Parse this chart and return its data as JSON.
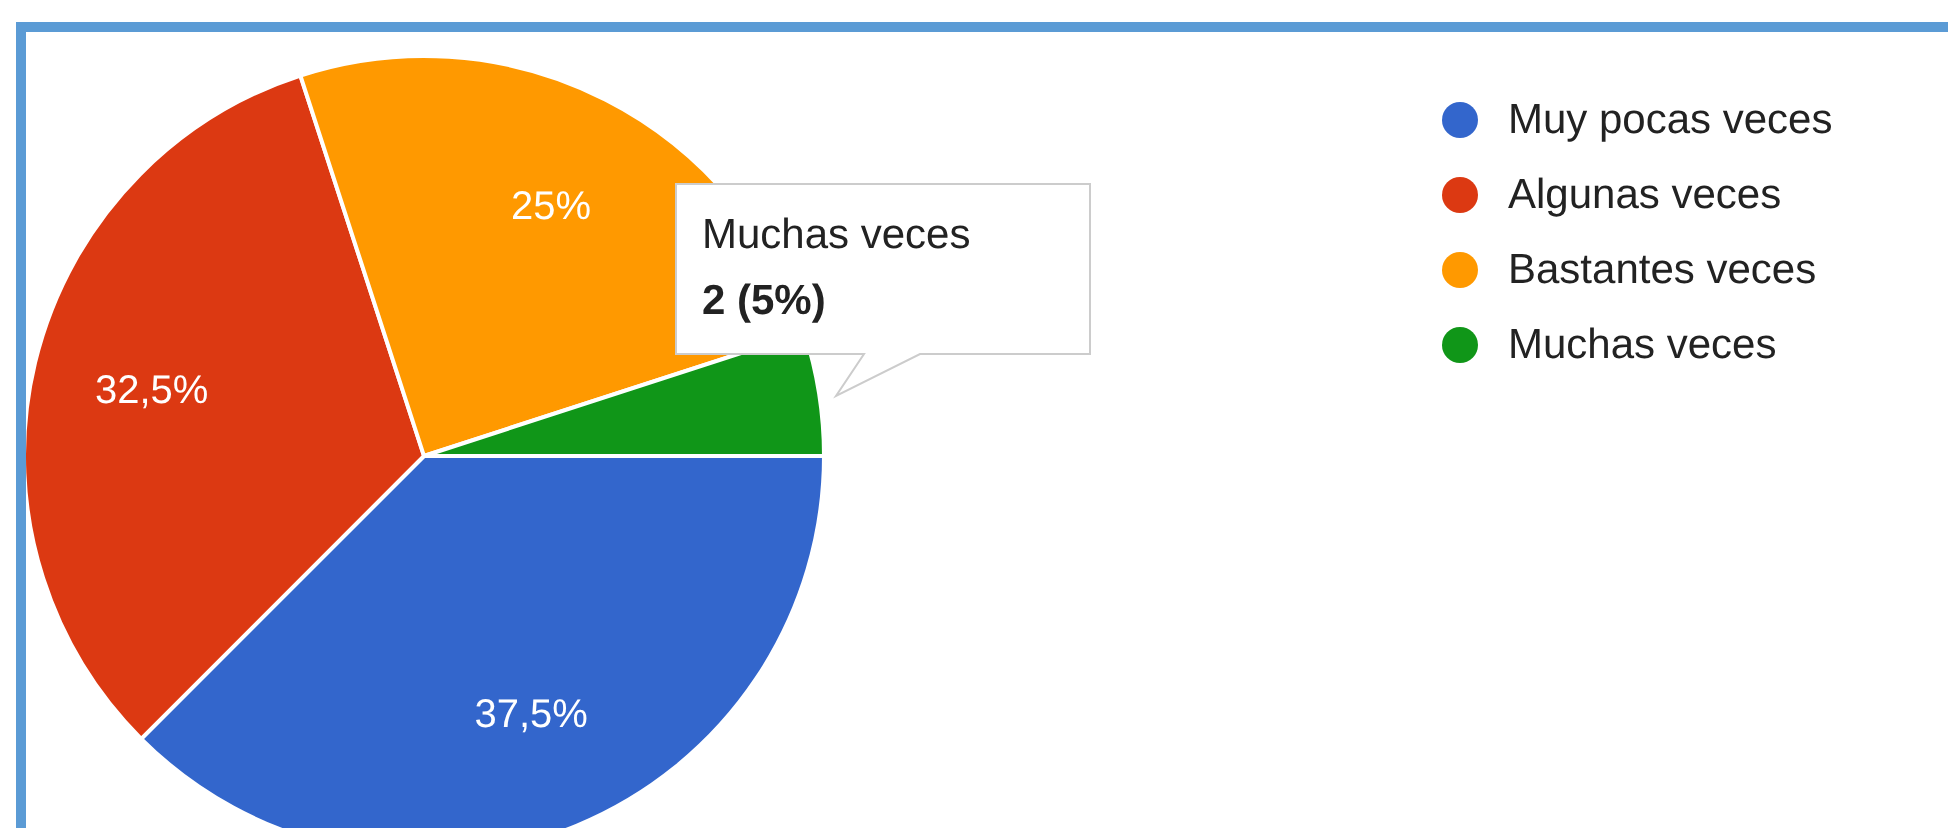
{
  "chart_data": {
    "type": "pie",
    "categories": [
      "Muy pocas veces",
      "Algunas veces",
      "Bastantes veces",
      "Muchas veces"
    ],
    "values": [
      37.5,
      32.5,
      25,
      5
    ],
    "colors": [
      "#3366cc",
      "#dc3912",
      "#ff9900",
      "#109618"
    ],
    "value_labels": [
      "37,5%",
      "32,5%",
      "25%",
      null
    ],
    "legend": "top right",
    "annotations": [
      "Muchas veces\n2 (5%)"
    ]
  }
}
